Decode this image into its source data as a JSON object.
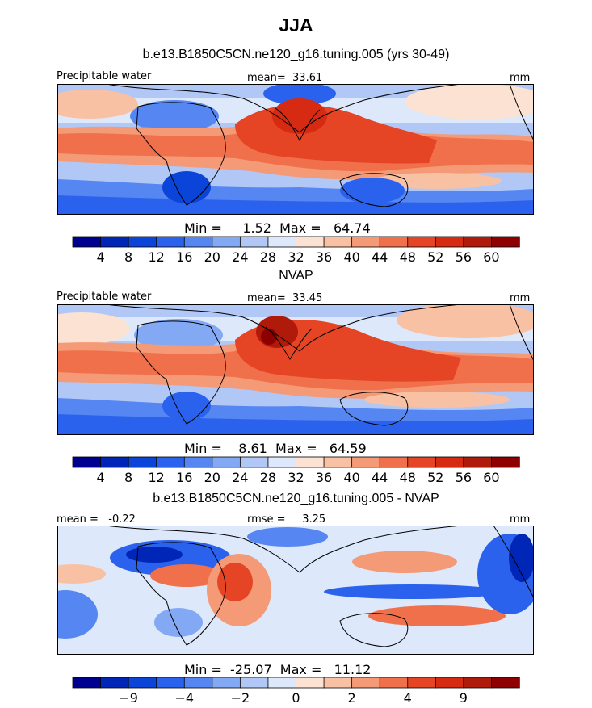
{
  "figure": {
    "season": "JJA",
    "colors": {
      "blue_scale": [
        "#000090",
        "#0026b8",
        "#0a44d8",
        "#2a62ee",
        "#5586f2",
        "#83a8f4",
        "#b1c8f6",
        "#dde8fa"
      ],
      "warm_scale": [
        "#fbe2d3",
        "#f9c1a4",
        "#f59a76",
        "#f0704c",
        "#e54425",
        "#d62a12",
        "#b01a0a",
        "#8e0000"
      ],
      "precip_colorbar": [
        "#000090",
        "#0026b8",
        "#0a44d8",
        "#2a62ee",
        "#5586f2",
        "#83a8f4",
        "#b1c8f6",
        "#dde8fa",
        "#fbe2d3",
        "#f9c1a4",
        "#f59a76",
        "#f0704c",
        "#e54425",
        "#d62a12",
        "#b01a0a",
        "#8e0000"
      ],
      "diff_colorbar": [
        "#000090",
        "#0026b8",
        "#0a44d8",
        "#2a62ee",
        "#5586f2",
        "#83a8f4",
        "#b1c8f6",
        "#dde8fa",
        "#fbe2d3",
        "#f9c1a4",
        "#f59a76",
        "#f0704c",
        "#e54425",
        "#d62a12",
        "#b01a0a",
        "#8e0000"
      ]
    }
  },
  "chart_data": [
    {
      "type": "heatmap",
      "title": "b.e13.B1850C5CN.ne120_g16.tuning.005 (yrs 30-49)",
      "left_label": "Precipitable water",
      "center_label": "mean=  33.61",
      "right_label": "mm",
      "minmax_text": "Min =     1.52  Max =   64.74",
      "min": 1.52,
      "max": 64.74,
      "mean": 33.61,
      "units": "mm",
      "colorbar_ticks": [
        "4",
        "8",
        "12",
        "16",
        "20",
        "24",
        "28",
        "32",
        "36",
        "40",
        "44",
        "48",
        "52",
        "56",
        "60"
      ],
      "colorbar_levels": [
        4,
        8,
        12,
        16,
        20,
        24,
        28,
        32,
        36,
        40,
        44,
        48,
        52,
        56,
        60
      ]
    },
    {
      "type": "heatmap",
      "title": "NVAP",
      "left_label": "Precipitable water",
      "center_label": "mean=  33.45",
      "right_label": "mm",
      "minmax_text": "Min =    8.61  Max =   64.59",
      "min": 8.61,
      "max": 64.59,
      "mean": 33.45,
      "units": "mm",
      "colorbar_ticks": [
        "4",
        "8",
        "12",
        "16",
        "20",
        "24",
        "28",
        "32",
        "36",
        "40",
        "44",
        "48",
        "52",
        "56",
        "60"
      ],
      "colorbar_levels": [
        4,
        8,
        12,
        16,
        20,
        24,
        28,
        32,
        36,
        40,
        44,
        48,
        52,
        56,
        60
      ]
    },
    {
      "type": "heatmap",
      "title": "b.e13.B1850C5CN.ne120_g16.tuning.005 - NVAP",
      "left_label": "mean =   -0.22",
      "center_label": "rmse =     3.25",
      "right_label": "mm",
      "minmax_text": "Min =  -25.07  Max =   11.12",
      "min": -25.07,
      "max": 11.12,
      "mean": -0.22,
      "rmse": 3.25,
      "units": "mm",
      "colorbar_ticks": [
        "-9",
        "-4",
        "-2",
        "0",
        "2",
        "4",
        "9"
      ],
      "colorbar_tick_boundaries": [
        2,
        4,
        6,
        8,
        10,
        12,
        14
      ]
    }
  ]
}
